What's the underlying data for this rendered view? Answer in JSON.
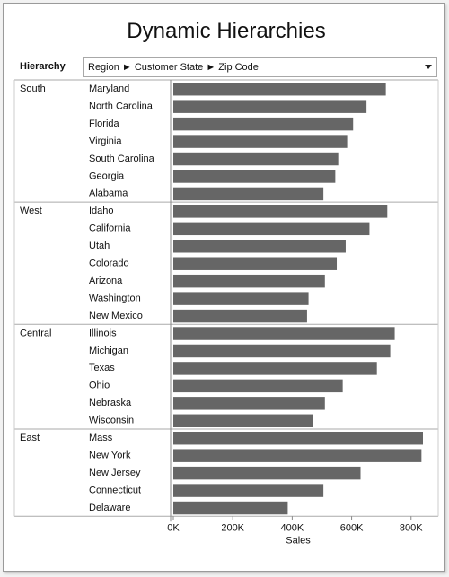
{
  "title": "Dynamic Hierarchies",
  "filter": {
    "label": "Hierarchy",
    "value": "Region ► Customer State ► Zip Code"
  },
  "chart_data": {
    "type": "bar",
    "orientation": "horizontal",
    "xlabel": "Sales",
    "xlim": [
      0,
      840000
    ],
    "x_ticks": [
      {
        "value": 0,
        "label": "0K"
      },
      {
        "value": 200000,
        "label": "200K"
      },
      {
        "value": 400000,
        "label": "400K"
      },
      {
        "value": 600000,
        "label": "600K"
      },
      {
        "value": 800000,
        "label": "800K"
      }
    ],
    "bar_color": "#666666",
    "groups": [
      {
        "name": "South",
        "items": [
          {
            "label": "Maryland",
            "value": 715000
          },
          {
            "label": "North Carolina",
            "value": 650000
          },
          {
            "label": "Florida",
            "value": 605000
          },
          {
            "label": "Virginia",
            "value": 585000
          },
          {
            "label": "South Carolina",
            "value": 555000
          },
          {
            "label": "Georgia",
            "value": 545000
          },
          {
            "label": "Alabama",
            "value": 505000
          }
        ]
      },
      {
        "name": "West",
        "items": [
          {
            "label": "Idaho",
            "value": 720000
          },
          {
            "label": "California",
            "value": 660000
          },
          {
            "label": "Utah",
            "value": 580000
          },
          {
            "label": "Colorado",
            "value": 550000
          },
          {
            "label": "Arizona",
            "value": 510000
          },
          {
            "label": "Washington",
            "value": 455000
          },
          {
            "label": "New Mexico",
            "value": 450000
          }
        ]
      },
      {
        "name": "Central",
        "items": [
          {
            "label": "Illinois",
            "value": 745000
          },
          {
            "label": "Michigan",
            "value": 730000
          },
          {
            "label": "Texas",
            "value": 685000
          },
          {
            "label": "Ohio",
            "value": 570000
          },
          {
            "label": "Nebraska",
            "value": 510000
          },
          {
            "label": "Wisconsin",
            "value": 470000
          }
        ]
      },
      {
        "name": "East",
        "items": [
          {
            "label": "Mass",
            "value": 840000
          },
          {
            "label": "New York",
            "value": 835000
          },
          {
            "label": "New Jersey",
            "value": 630000
          },
          {
            "label": "Connecticut",
            "value": 505000
          },
          {
            "label": "Delaware",
            "value": 385000
          }
        ]
      }
    ]
  }
}
